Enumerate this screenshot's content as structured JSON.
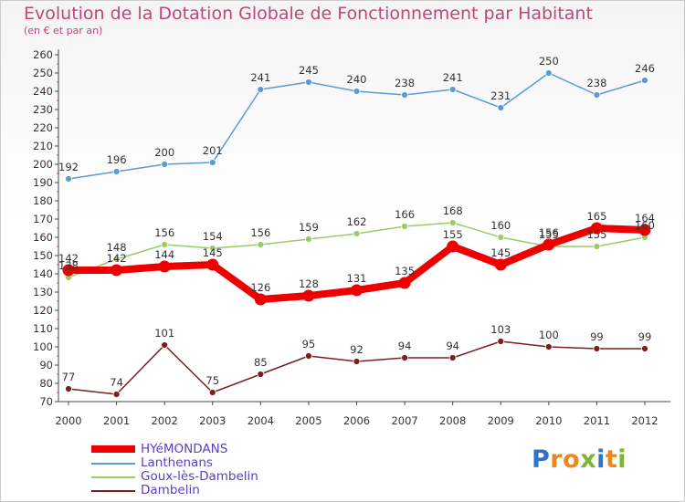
{
  "header": {
    "title": "Evolution de la Dotation Globale de Fonctionnement par Habitant",
    "subtitle": "(en € et par an)"
  },
  "logo": {
    "letters": [
      {
        "ch": "P",
        "color": "#2f74c8"
      },
      {
        "ch": "r",
        "color": "#e9891c"
      },
      {
        "ch": "o",
        "color": "#e9891c"
      },
      {
        "ch": "x",
        "color": "#7fb332"
      },
      {
        "ch": "i",
        "color": "#2f74c8"
      },
      {
        "ch": "t",
        "color": "#e9891c"
      },
      {
        "ch": "i",
        "color": "#7fb332"
      }
    ]
  },
  "chart_data": {
    "type": "line",
    "title": "Evolution de la Dotation Globale de Fonctionnement par Habitant",
    "subtitle": "(en € et par an)",
    "x": [
      "2000",
      "2001",
      "2002",
      "2003",
      "2004",
      "2005",
      "2006",
      "2007",
      "2008",
      "2009",
      "2010",
      "2011",
      "2012"
    ],
    "ylim": [
      70,
      260
    ],
    "ytick_step": 10,
    "grid": false,
    "legend_position": "bottom-left",
    "series": [
      {
        "name": "HYéMONDANS",
        "color": "#ee0000",
        "values": [
          142,
          142,
          144,
          145,
          126,
          128,
          131,
          135,
          155,
          145,
          156,
          165,
          164
        ]
      },
      {
        "name": "Lanthenans",
        "color": "#5b9bd5",
        "values": [
          192,
          196,
          200,
          201,
          241,
          245,
          240,
          238,
          241,
          231,
          250,
          238,
          246
        ]
      },
      {
        "name": "Goux-lès-Dambelin",
        "color": "#99cc66",
        "values": [
          138,
          148,
          156,
          154,
          156,
          159,
          162,
          166,
          168,
          160,
          155,
          155,
          160
        ]
      },
      {
        "name": "Dambelin",
        "color": "#7b1e1e",
        "values": [
          77,
          74,
          101,
          75,
          85,
          95,
          92,
          94,
          94,
          103,
          100,
          99,
          99
        ]
      }
    ]
  }
}
